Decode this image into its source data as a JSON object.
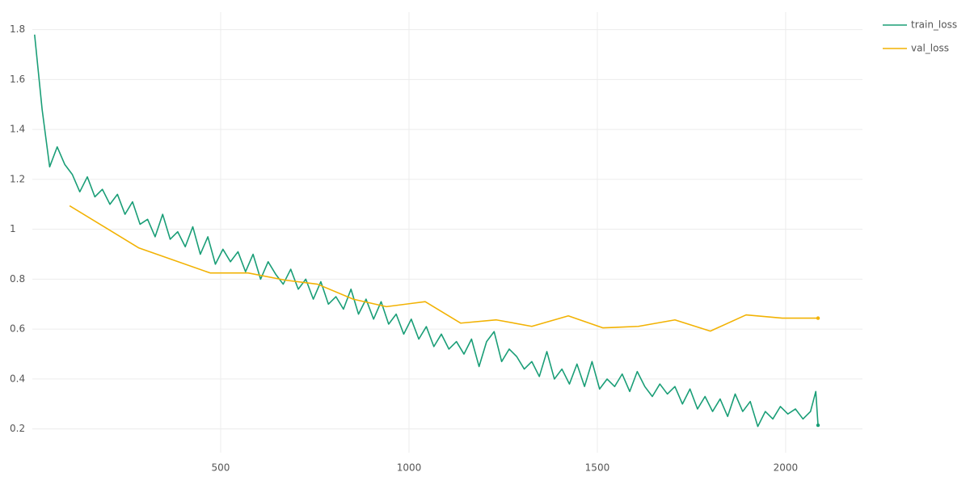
{
  "chart_data": {
    "type": "line",
    "xlim": [
      0,
      2204
    ],
    "ylim": [
      0.105,
      1.87
    ],
    "xticks": [
      500,
      1000,
      1500,
      2000
    ],
    "yticks": [
      0.2,
      0.4,
      0.6,
      0.8,
      1,
      1.2,
      1.4,
      1.6,
      1.8
    ],
    "grid": true,
    "legend": "top-right",
    "series": [
      {
        "name": "train_loss",
        "color": "#1a9e77",
        "x": [
          6,
          26,
          46,
          66,
          86,
          106,
          126,
          146,
          166,
          186,
          206,
          226,
          246,
          266,
          286,
          306,
          326,
          346,
          366,
          386,
          406,
          426,
          446,
          466,
          486,
          506,
          526,
          546,
          566,
          586,
          606,
          626,
          646,
          666,
          686,
          706,
          726,
          746,
          766,
          786,
          806,
          826,
          846,
          866,
          886,
          906,
          926,
          946,
          966,
          986,
          1006,
          1026,
          1046,
          1066,
          1086,
          1106,
          1126,
          1146,
          1166,
          1186,
          1206,
          1226,
          1246,
          1266,
          1286,
          1306,
          1326,
          1346,
          1366,
          1386,
          1406,
          1426,
          1446,
          1466,
          1486,
          1506,
          1526,
          1546,
          1566,
          1586,
          1606,
          1626,
          1646,
          1666,
          1686,
          1706,
          1726,
          1746,
          1766,
          1786,
          1806,
          1826,
          1846,
          1866,
          1886,
          1906,
          1926,
          1946,
          1966,
          1986,
          2006,
          2026,
          2046,
          2066,
          2080,
          2086
        ],
        "values": [
          1.78,
          1.48,
          1.25,
          1.33,
          1.26,
          1.22,
          1.15,
          1.21,
          1.13,
          1.16,
          1.1,
          1.14,
          1.06,
          1.11,
          1.02,
          1.04,
          0.97,
          1.06,
          0.96,
          0.99,
          0.93,
          1.01,
          0.9,
          0.97,
          0.86,
          0.92,
          0.87,
          0.91,
          0.83,
          0.9,
          0.8,
          0.87,
          0.82,
          0.78,
          0.84,
          0.76,
          0.8,
          0.72,
          0.79,
          0.7,
          0.73,
          0.68,
          0.76,
          0.66,
          0.72,
          0.64,
          0.71,
          0.62,
          0.66,
          0.58,
          0.64,
          0.56,
          0.61,
          0.53,
          0.58,
          0.52,
          0.55,
          0.5,
          0.56,
          0.45,
          0.55,
          0.59,
          0.47,
          0.52,
          0.49,
          0.44,
          0.47,
          0.41,
          0.51,
          0.4,
          0.44,
          0.38,
          0.46,
          0.37,
          0.47,
          0.36,
          0.4,
          0.37,
          0.42,
          0.35,
          0.43,
          0.37,
          0.33,
          0.38,
          0.34,
          0.37,
          0.3,
          0.36,
          0.28,
          0.33,
          0.27,
          0.32,
          0.25,
          0.34,
          0.27,
          0.31,
          0.21,
          0.27,
          0.24,
          0.29,
          0.26,
          0.28,
          0.24,
          0.27,
          0.35,
          0.215
        ]
      },
      {
        "name": "val_loss",
        "color": "#f2b203",
        "x": [
          99,
          283,
          472,
          573,
          672,
          757,
          852,
          940,
          1043,
          1137,
          1232,
          1326,
          1423,
          1515,
          1609,
          1706,
          1800,
          1895,
          1991,
          2086
        ],
        "values": [
          1.094,
          0.925,
          0.825,
          0.825,
          0.796,
          0.78,
          0.72,
          0.69,
          0.71,
          0.624,
          0.637,
          0.611,
          0.653,
          0.605,
          0.611,
          0.637,
          0.592,
          0.657,
          0.644,
          0.644
        ]
      }
    ]
  }
}
